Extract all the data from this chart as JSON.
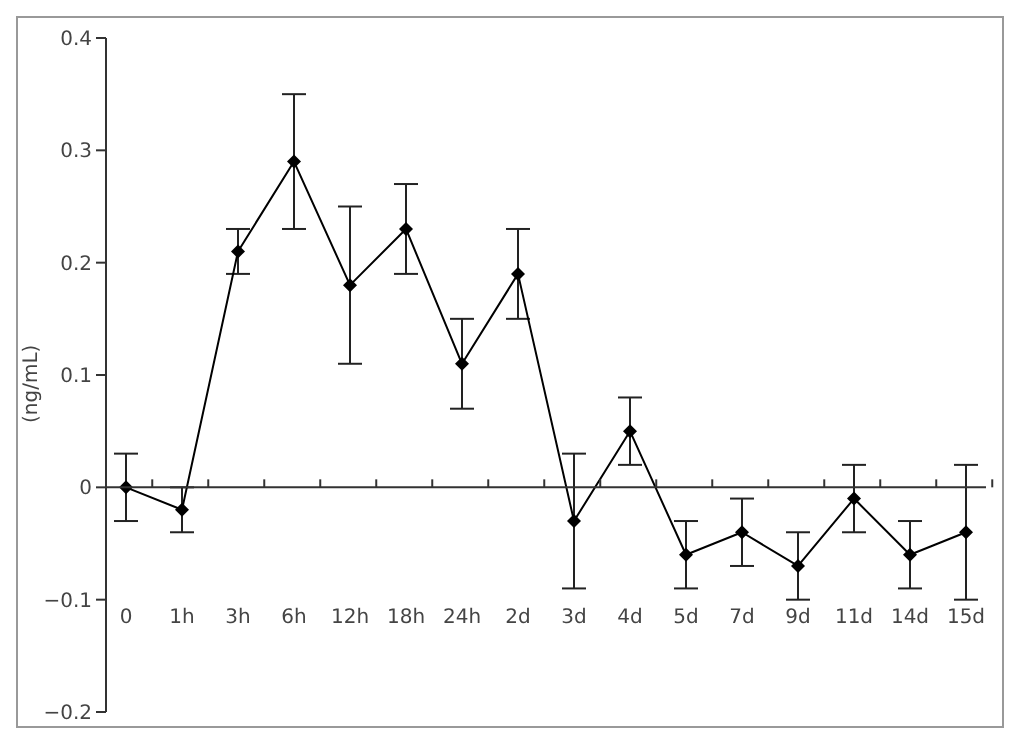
{
  "chart_data": {
    "type": "line",
    "ylabel": "(ng/mL)",
    "categories": [
      "0",
      "1h",
      "3h",
      "6h",
      "12h",
      "18h",
      "24h",
      "2d",
      "3d",
      "4d",
      "5d",
      "7d",
      "9d",
      "11d",
      "14d",
      "15d"
    ],
    "series": [
      {
        "color": "#000000",
        "values": [
          0,
          -0.02,
          0.21,
          0.29,
          0.18,
          0.23,
          0.11,
          0.19,
          -0.03,
          0.05,
          -0.06,
          -0.04,
          -0.07,
          -0.01,
          -0.06,
          -0.04
        ],
        "errors": [
          0.03,
          0.02,
          0.02,
          0.06,
          0.07,
          0.04,
          0.04,
          0.04,
          0.06,
          0.03,
          0.03,
          0.03,
          0.03,
          0.03,
          0.03,
          0.06
        ]
      }
    ],
    "ylim": [
      -0.2,
      0.4
    ],
    "yticks": [
      {
        "value": -0.2,
        "label": "−0.2"
      },
      {
        "value": -0.1,
        "label": "−0.1"
      },
      0,
      0.1,
      0.2,
      0.3,
      0.4
    ],
    "marker": "diamond",
    "line_style": "solid"
  }
}
